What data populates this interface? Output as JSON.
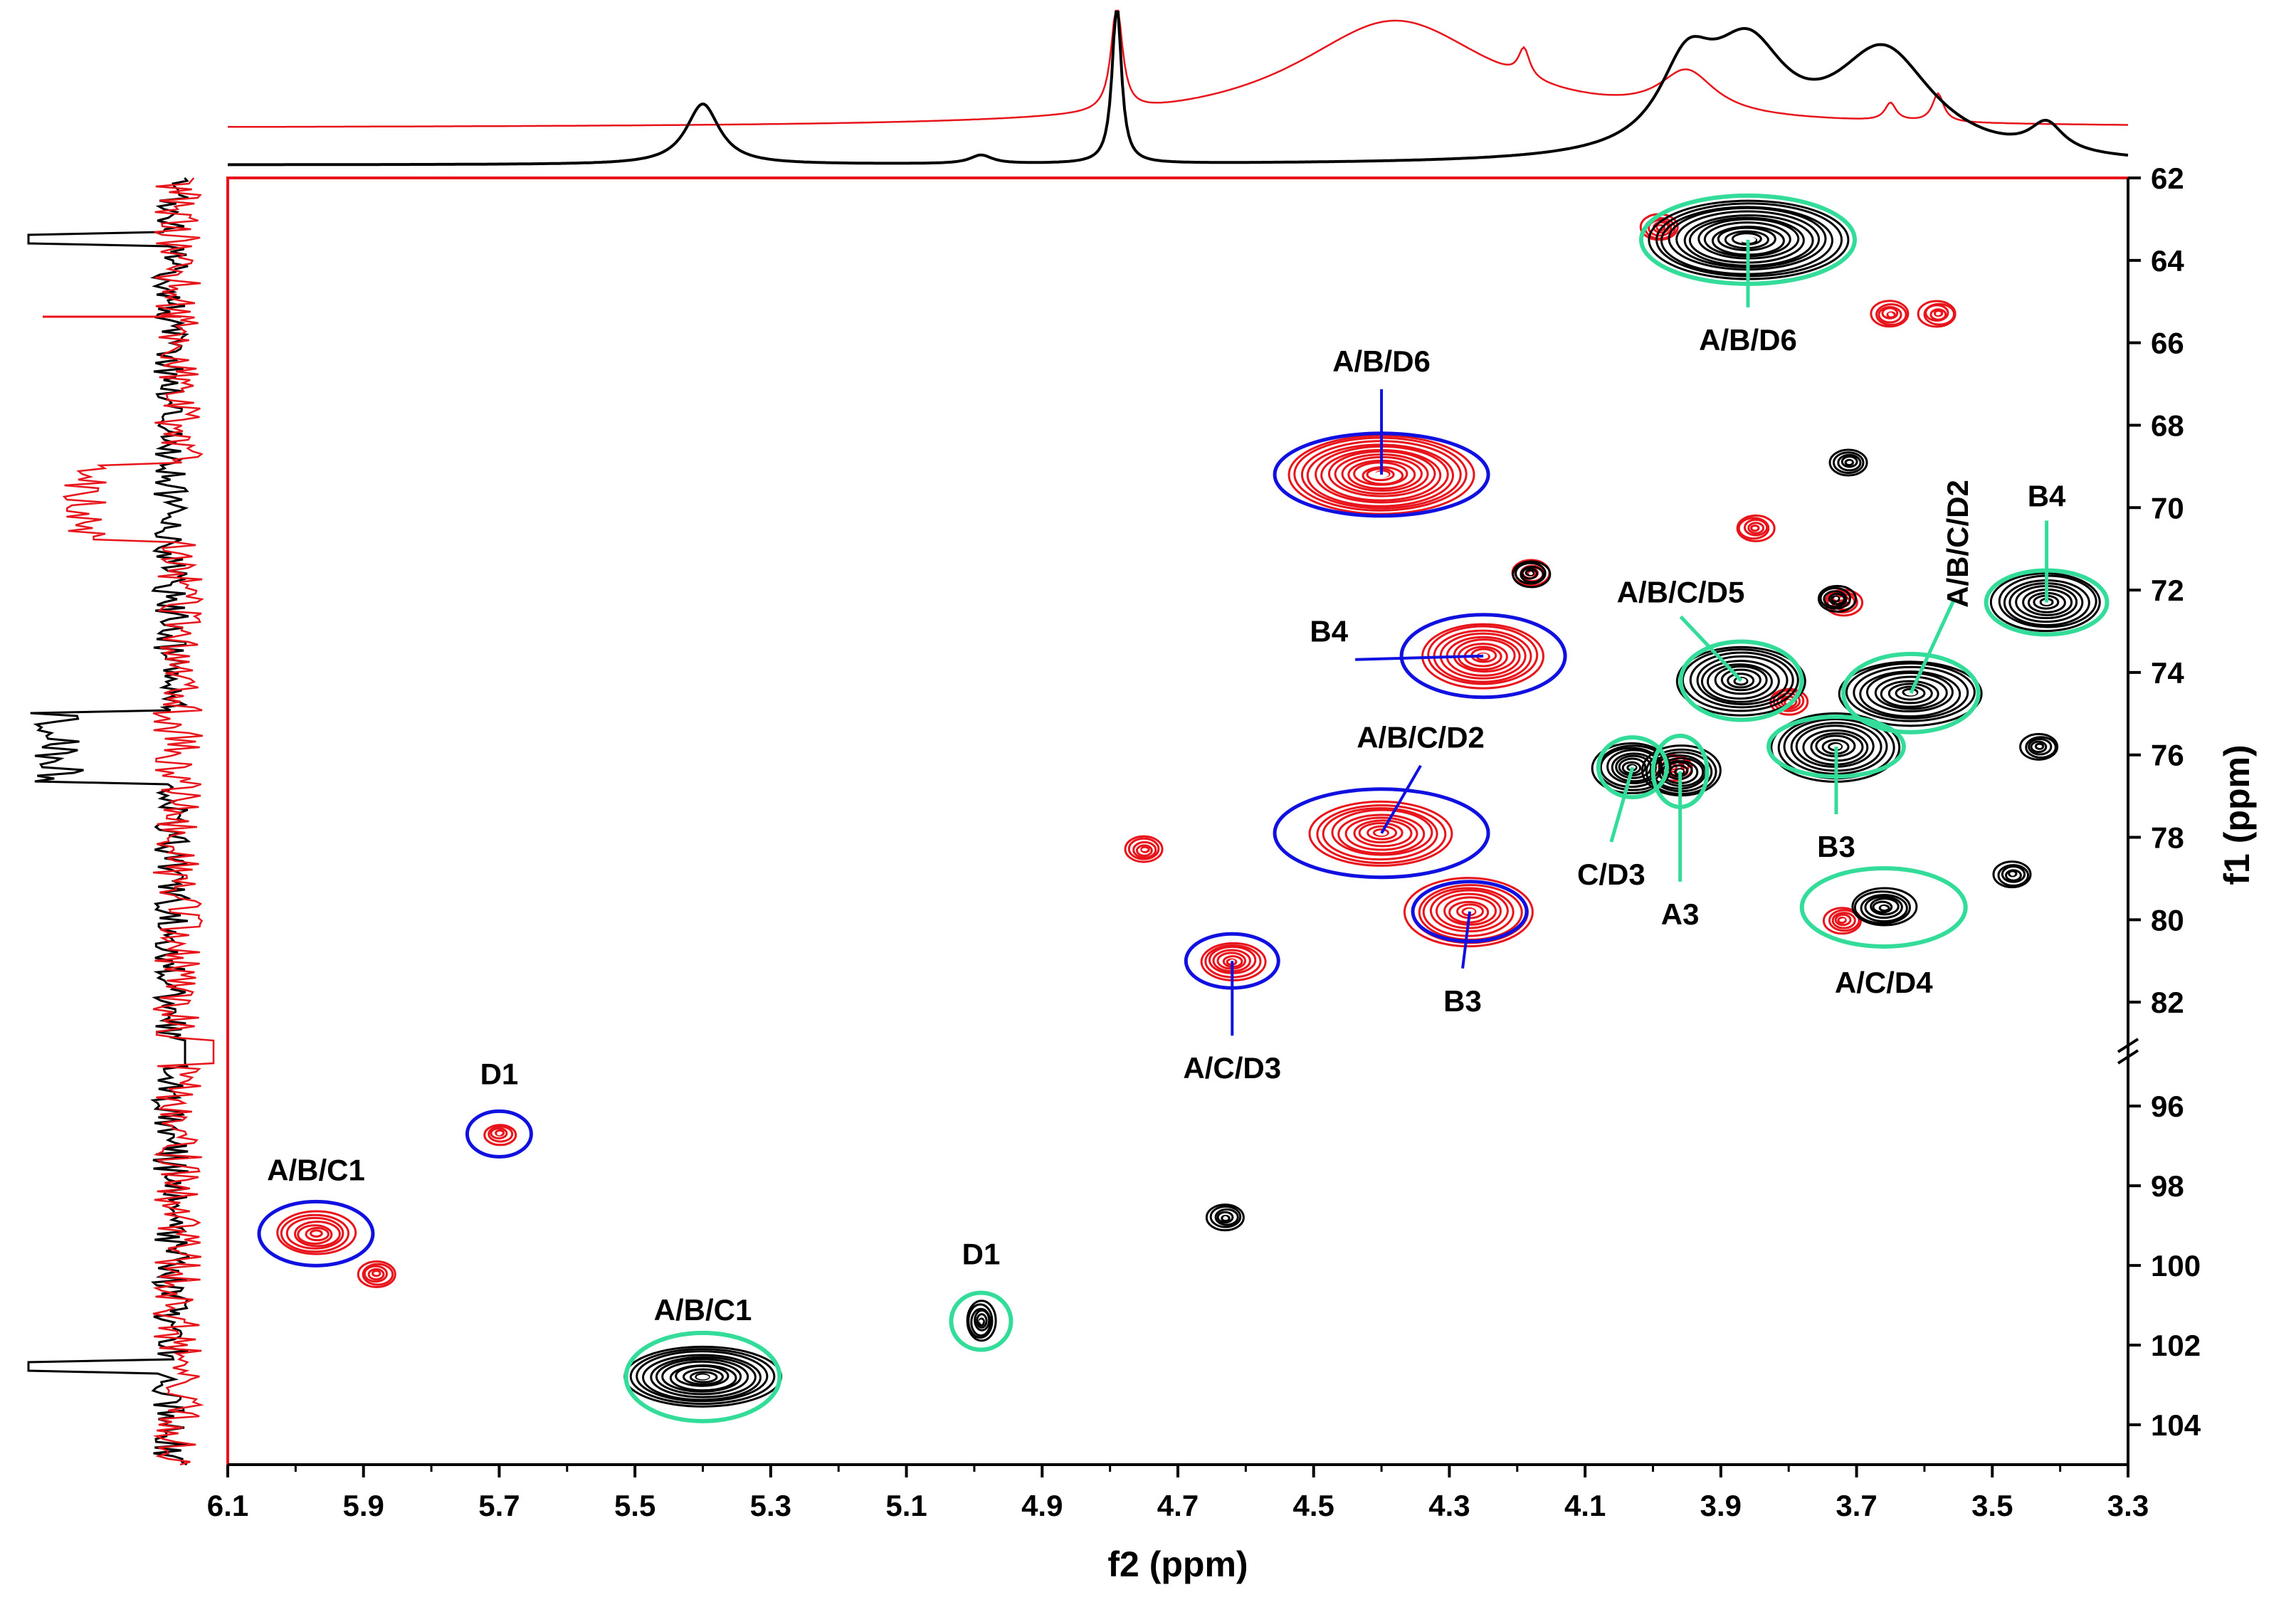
{
  "chart_data": {
    "type": "2d-nmr-contour",
    "title": "",
    "xlabel": "f2 (ppm)",
    "ylabel": "f1 (ppm)",
    "xlim": [
      6.1,
      3.3
    ],
    "ylim_upper": [
      62,
      83
    ],
    "ylim_lower": [
      95,
      105
    ],
    "axis_break_f1": "83–95",
    "x_ticks": [
      "6.1",
      "5.9",
      "5.7",
      "5.5",
      "5.3",
      "5.1",
      "4.9",
      "4.7",
      "4.5",
      "4.3",
      "4.1",
      "3.9",
      "3.7",
      "3.5",
      "3.3"
    ],
    "y_ticks": [
      "62",
      "64",
      "66",
      "68",
      "70",
      "72",
      "74",
      "76",
      "78",
      "80",
      "82",
      "96",
      "98",
      "100",
      "102",
      "104"
    ],
    "colors": {
      "red_spectrum": "#e8141b",
      "black_spectrum": "#000000",
      "blue_annotation": "#1010e0",
      "green_annotation": "#33dd99",
      "frame": "#e8141b"
    },
    "series": [
      {
        "name": "red",
        "color": "#e8141b",
        "peaks": [
          {
            "f2": 4.4,
            "f1": 69.2,
            "label": "A/B/D6"
          },
          {
            "f2": 4.25,
            "f1": 73.6,
            "label": "B4"
          },
          {
            "f2": 4.4,
            "f1": 77.9,
            "label": "A/B/C/D2"
          },
          {
            "f2": 4.27,
            "f1": 79.8,
            "label": "B3"
          },
          {
            "f2": 4.62,
            "f1": 81.0,
            "label": "A/C/D3"
          },
          {
            "f2": 5.7,
            "f1": 96.7,
            "label": "D1"
          },
          {
            "f2": 5.97,
            "f1": 99.2,
            "label": "A/B/C1"
          },
          {
            "f2": 4.18,
            "f1": 71.6,
            "label": ""
          },
          {
            "f2": 4.75,
            "f1": 78.3,
            "label": ""
          },
          {
            "f2": 3.99,
            "f1": 63.2,
            "label": ""
          },
          {
            "f2": 3.65,
            "f1": 65.3,
            "label": ""
          },
          {
            "f2": 3.58,
            "f1": 65.3,
            "label": ""
          },
          {
            "f2": 3.85,
            "f1": 70.5,
            "label": ""
          },
          {
            "f2": 3.72,
            "f1": 72.3,
            "label": ""
          },
          {
            "f2": 3.8,
            "f1": 74.7,
            "label": ""
          },
          {
            "f2": 3.97,
            "f1": 76.3,
            "label": ""
          },
          {
            "f2": 5.88,
            "f1": 100.2,
            "label": ""
          },
          {
            "f2": 3.72,
            "f1": 80.0,
            "label": ""
          }
        ]
      },
      {
        "name": "black",
        "color": "#000000",
        "peaks": [
          {
            "f2": 3.86,
            "f1": 63.5,
            "label": "A/B/D6"
          },
          {
            "f2": 3.42,
            "f1": 72.3,
            "label": "B4"
          },
          {
            "f2": 3.87,
            "f1": 74.2,
            "label": "A/B/C/D5"
          },
          {
            "f2": 3.62,
            "f1": 74.5,
            "label": "A/B/C/D2"
          },
          {
            "f2": 3.73,
            "f1": 75.8,
            "label": "B3"
          },
          {
            "f2": 4.03,
            "f1": 76.3,
            "label": "C/D3"
          },
          {
            "f2": 3.96,
            "f1": 76.4,
            "label": "A3"
          },
          {
            "f2": 3.66,
            "f1": 79.7,
            "label": "A/C/D4"
          },
          {
            "f2": 4.99,
            "f1": 101.4,
            "label": "D1"
          },
          {
            "f2": 5.4,
            "f1": 102.8,
            "label": "A/B/C1"
          },
          {
            "f2": 4.63,
            "f1": 98.8,
            "label": ""
          },
          {
            "f2": 3.47,
            "f1": 78.9,
            "label": ""
          },
          {
            "f2": 3.43,
            "f1": 75.8,
            "label": ""
          },
          {
            "f2": 3.71,
            "f1": 68.9,
            "label": ""
          },
          {
            "f2": 3.73,
            "f1": 72.2,
            "label": ""
          },
          {
            "f2": 4.18,
            "f1": 71.6,
            "label": ""
          }
        ]
      }
    ],
    "annotations": {
      "blue": [
        {
          "text": "A/B/D6",
          "f2": 4.4,
          "f1": 69.2
        },
        {
          "text": "B4",
          "f2": 4.25,
          "f1": 73.6
        },
        {
          "text": "A/B/C/D2",
          "f2": 4.4,
          "f1": 77.9
        },
        {
          "text": "B3",
          "f2": 4.27,
          "f1": 79.8
        },
        {
          "text": "A/C/D3",
          "f2": 4.62,
          "f1": 81.0
        },
        {
          "text": "D1",
          "f2": 5.7,
          "f1": 96.7
        },
        {
          "text": "A/B/C1",
          "f2": 5.97,
          "f1": 99.2
        }
      ],
      "green": [
        {
          "text": "A/B/D6",
          "f2": 3.86,
          "f1": 63.5
        },
        {
          "text": "B4",
          "f2": 3.42,
          "f1": 72.3
        },
        {
          "text": "A/B/C/D5",
          "f2": 3.87,
          "f1": 74.2
        },
        {
          "text": "A/B/C/D2",
          "f2": 3.62,
          "f1": 74.5
        },
        {
          "text": "B3",
          "f2": 3.73,
          "f1": 75.8
        },
        {
          "text": "C/D3",
          "f2": 4.03,
          "f1": 76.3
        },
        {
          "text": "A3",
          "f2": 3.96,
          "f1": 76.4
        },
        {
          "text": "A/C/D4",
          "f2": 3.66,
          "f1": 79.7
        },
        {
          "text": "D1",
          "f2": 4.99,
          "f1": 101.4
        },
        {
          "text": "A/B/C1",
          "f2": 5.4,
          "f1": 102.8
        }
      ]
    }
  }
}
